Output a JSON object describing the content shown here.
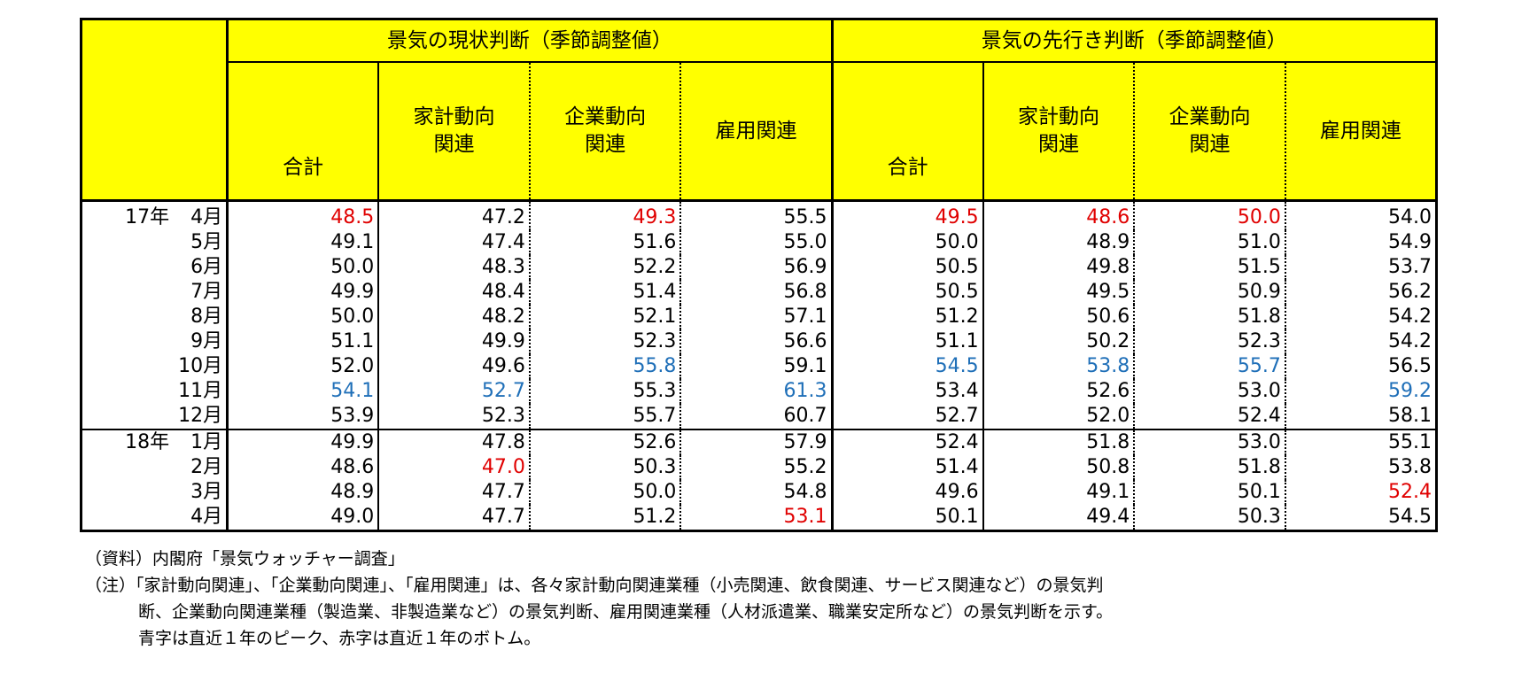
{
  "chart_data": {
    "type": "table",
    "group_headers": [
      "景気の現状判断（季節調整値）",
      "景気の先行き判断（季節調整値）"
    ],
    "column_headers": [
      "合計",
      "家計動向\n関連",
      "企業動向\n関連",
      "雇用関連",
      "合計",
      "家計動向\n関連",
      "企業動向\n関連",
      "雇用関連"
    ],
    "rows": [
      {
        "year": "17年",
        "month": "4月",
        "values": [
          "48.5",
          "47.2",
          "49.3",
          "55.5",
          "49.5",
          "48.6",
          "50.0",
          "54.0"
        ],
        "colors": [
          "red",
          "",
          "red",
          "",
          "red",
          "red",
          "red",
          ""
        ]
      },
      {
        "year": "",
        "month": "5月",
        "values": [
          "49.1",
          "47.4",
          "51.6",
          "55.0",
          "50.0",
          "48.9",
          "51.0",
          "54.9"
        ],
        "colors": [
          "",
          "",
          "",
          "",
          "",
          "",
          "",
          ""
        ]
      },
      {
        "year": "",
        "month": "6月",
        "values": [
          "50.0",
          "48.3",
          "52.2",
          "56.9",
          "50.5",
          "49.8",
          "51.5",
          "53.7"
        ],
        "colors": [
          "",
          "",
          "",
          "",
          "",
          "",
          "",
          ""
        ]
      },
      {
        "year": "",
        "month": "7月",
        "values": [
          "49.9",
          "48.4",
          "51.4",
          "56.8",
          "50.5",
          "49.5",
          "50.9",
          "56.2"
        ],
        "colors": [
          "",
          "",
          "",
          "",
          "",
          "",
          "",
          ""
        ]
      },
      {
        "year": "",
        "month": "8月",
        "values": [
          "50.0",
          "48.2",
          "52.1",
          "57.1",
          "51.2",
          "50.6",
          "51.8",
          "54.2"
        ],
        "colors": [
          "",
          "",
          "",
          "",
          "",
          "",
          "",
          ""
        ]
      },
      {
        "year": "",
        "month": "9月",
        "values": [
          "51.1",
          "49.9",
          "52.3",
          "56.6",
          "51.1",
          "50.2",
          "52.3",
          "54.2"
        ],
        "colors": [
          "",
          "",
          "",
          "",
          "",
          "",
          "",
          ""
        ]
      },
      {
        "year": "",
        "month": "10月",
        "values": [
          "52.0",
          "49.6",
          "55.8",
          "59.1",
          "54.5",
          "53.8",
          "55.7",
          "56.5"
        ],
        "colors": [
          "",
          "",
          "blue",
          "",
          "blue",
          "blue",
          "blue",
          ""
        ]
      },
      {
        "year": "",
        "month": "11月",
        "values": [
          "54.1",
          "52.7",
          "55.3",
          "61.3",
          "53.4",
          "52.6",
          "53.0",
          "59.2"
        ],
        "colors": [
          "blue",
          "blue",
          "",
          "blue",
          "",
          "",
          "",
          "blue"
        ]
      },
      {
        "year": "",
        "month": "12月",
        "values": [
          "53.9",
          "52.3",
          "55.7",
          "60.7",
          "52.7",
          "52.0",
          "52.4",
          "58.1"
        ],
        "colors": [
          "",
          "",
          "",
          "",
          "",
          "",
          "",
          ""
        ]
      },
      {
        "year": "18年",
        "month": "1月",
        "values": [
          "49.9",
          "47.8",
          "52.6",
          "57.9",
          "52.4",
          "51.8",
          "53.0",
          "55.1"
        ],
        "colors": [
          "",
          "",
          "",
          "",
          "",
          "",
          "",
          ""
        ]
      },
      {
        "year": "",
        "month": "2月",
        "values": [
          "48.6",
          "47.0",
          "50.3",
          "55.2",
          "51.4",
          "50.8",
          "51.8",
          "53.8"
        ],
        "colors": [
          "",
          "red",
          "",
          "",
          "",
          "",
          "",
          ""
        ]
      },
      {
        "year": "",
        "month": "3月",
        "values": [
          "48.9",
          "47.7",
          "50.0",
          "54.8",
          "49.6",
          "49.1",
          "50.1",
          "52.4"
        ],
        "colors": [
          "",
          "",
          "",
          "",
          "",
          "",
          "",
          "red"
        ]
      },
      {
        "year": "",
        "month": "4月",
        "values": [
          "49.0",
          "47.7",
          "51.2",
          "53.1",
          "50.1",
          "49.4",
          "50.3",
          "54.5"
        ],
        "colors": [
          "",
          "",
          "",
          "red",
          "",
          "",
          "",
          ""
        ]
      }
    ]
  },
  "colors": {
    "header_bg": "#ffff00",
    "red": "#e00000",
    "blue": "#1f6fb8"
  },
  "notes": {
    "source": "（資料）内閣府「景気ウォッチャー調査」",
    "note_line1": "（注）「家計動向関連」、「企業動向関連」、「雇用関連」は、各々家計動向関連業種（小売関連、飲食関連、サービス関連など）の景気判",
    "note_line2": "断、企業動向関連業種（製造業、非製造業など）の景気判断、雇用関連業種（人材派遣業、職業安定所など）の景気判断を示す。",
    "note_line3": "青字は直近１年のピーク、赤字は直近１年のボトム。"
  }
}
